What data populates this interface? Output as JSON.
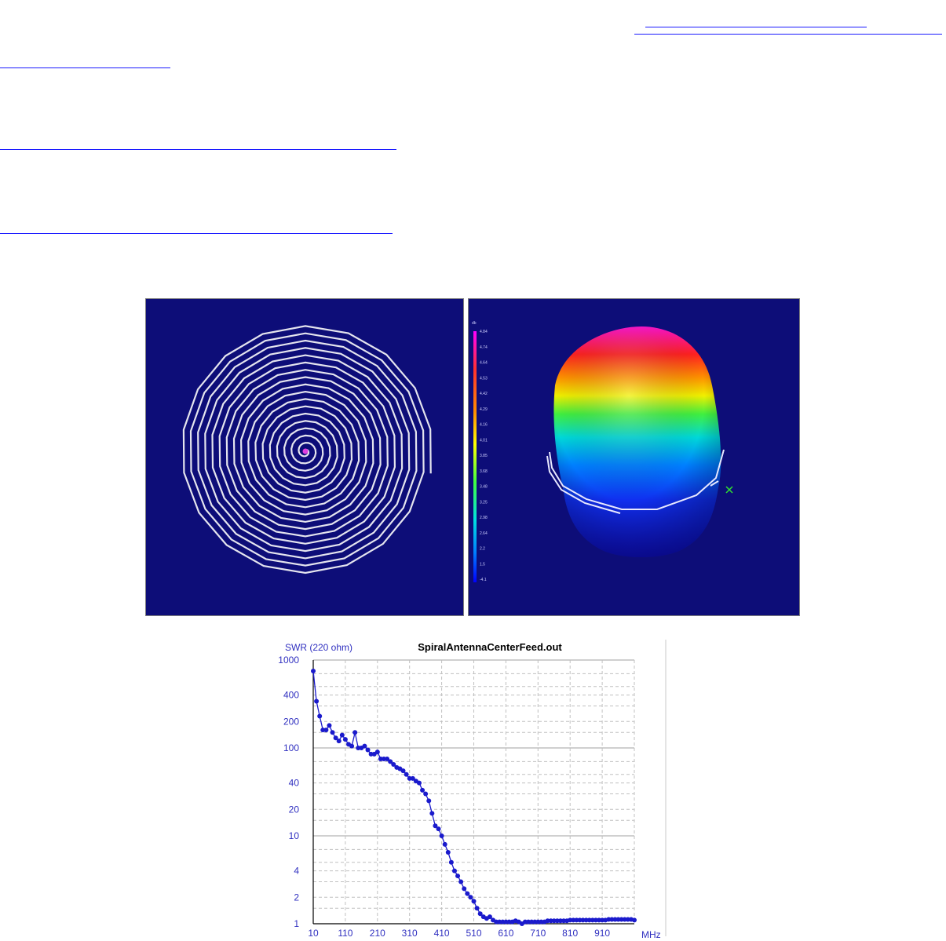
{
  "links": [
    {
      "name": "link-1",
      "text": ""
    },
    {
      "name": "link-2",
      "text": ""
    },
    {
      "name": "link-3",
      "text": ""
    },
    {
      "name": "link-4",
      "text": ""
    },
    {
      "name": "link-5",
      "text": ""
    }
  ],
  "figure": {
    "colorbar": {
      "unit": "db",
      "ticks": [
        "4.84",
        "4.74",
        "4.64",
        "4.53",
        "4.42",
        "4.29",
        "4.16",
        "4.01",
        "3.85",
        "3.68",
        "3.48",
        "3.25",
        "2.98",
        "2.64",
        "2.2",
        "1.5",
        "-4.1"
      ]
    }
  },
  "chart_data": {
    "type": "line",
    "title": "SpiralAntennaCenterFeed.out",
    "ylabel": "SWR (220 ohm)",
    "xlabel": "MHz",
    "yscale": "log",
    "ylim": [
      1,
      1000
    ],
    "xlim": [
      10,
      1010
    ],
    "grid": true,
    "color": "#1a1acc",
    "yticks": [
      "1000",
      "400",
      "200",
      "100",
      "40",
      "20",
      "10",
      "4",
      "2",
      "1"
    ],
    "xticks": [
      "10",
      "110",
      "210",
      "310",
      "410",
      "510",
      "610",
      "710",
      "810",
      "910"
    ],
    "series": [
      {
        "x": [
          10,
          20,
          30,
          40,
          50,
          60,
          70,
          80,
          90,
          100,
          110,
          120,
          130,
          140,
          150,
          160,
          170,
          180,
          190,
          200,
          210,
          220,
          230,
          240,
          250,
          260,
          270,
          280,
          290,
          300,
          310,
          320,
          330,
          340,
          350,
          360,
          370,
          380,
          390,
          400,
          410,
          420,
          430,
          440,
          450,
          460,
          470,
          480,
          490,
          500,
          510,
          520,
          530,
          540,
          550,
          560,
          570,
          580,
          590,
          600,
          610,
          620,
          630,
          640,
          650,
          660,
          670,
          680,
          690,
          700,
          710,
          720,
          730,
          740,
          750,
          760,
          770,
          780,
          790,
          800,
          810,
          820,
          830,
          840,
          850,
          860,
          870,
          880,
          890,
          900,
          910,
          920,
          930,
          940,
          950,
          960,
          970,
          980,
          990,
          1000,
          1010
        ],
        "y": [
          750,
          340,
          230,
          160,
          160,
          180,
          150,
          130,
          120,
          140,
          125,
          110,
          105,
          150,
          100,
          100,
          105,
          95,
          85,
          85,
          90,
          75,
          75,
          75,
          70,
          65,
          60,
          58,
          55,
          50,
          45,
          45,
          42,
          40,
          33,
          30,
          25,
          18,
          13,
          12,
          10,
          8,
          6.5,
          5,
          4,
          3.5,
          3,
          2.5,
          2.2,
          2,
          1.8,
          1.5,
          1.3,
          1.2,
          1.15,
          1.2,
          1.1,
          1.05,
          1.05,
          1.05,
          1.05,
          1.05,
          1.05,
          1.08,
          1.05,
          1,
          1.05,
          1.05,
          1.05,
          1.05,
          1.05,
          1.05,
          1.05,
          1.08,
          1.08,
          1.08,
          1.08,
          1.08,
          1.08,
          1.08,
          1.1,
          1.1,
          1.1,
          1.1,
          1.1,
          1.1,
          1.1,
          1.1,
          1.1,
          1.1,
          1.1,
          1.1,
          1.12,
          1.12,
          1.12,
          1.12,
          1.12,
          1.12,
          1.12,
          1.12,
          1.1
        ]
      }
    ]
  }
}
